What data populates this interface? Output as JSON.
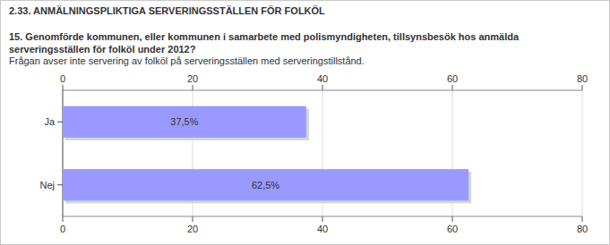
{
  "chart_data": {
    "type": "bar",
    "orientation": "horizontal",
    "title": "2.33. ANMÄLNINGSPLIKTIGA SERVERINGSSTÄLLEN FÖR FOLKÖL",
    "subtitle": "15. Genomförde kommunen, eller kommunen i samarbete med polismyndigheten, tillsynsbesök hos anmälda serveringsställen för folköl under 2012?",
    "annotations": [
      "Frågan avser inte servering av folköl på serveringsställen med serveringstillstånd."
    ],
    "categories": [
      "Ja",
      "Nej"
    ],
    "values": [
      37.5,
      62.5
    ],
    "value_labels": [
      "37,5%",
      "62,5%"
    ],
    "data_labels": true,
    "color": "#9999ff",
    "xlim": [
      0,
      80
    ],
    "xticks": [
      0,
      20,
      40,
      60,
      80
    ],
    "grid": true
  }
}
